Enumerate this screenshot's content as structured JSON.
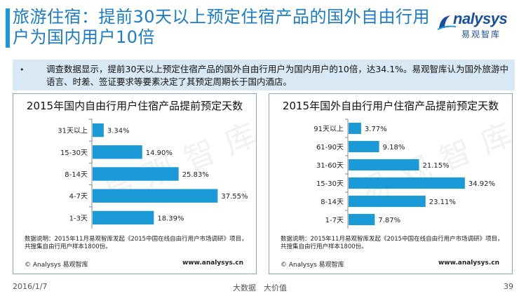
{
  "slide": {
    "title": "旅游住宿：提前30天以上预定住宿产品的国外自由行用户为国内用户10倍",
    "summary": "调查数据显示，提前30天以上预定住宿产品的国外自由行用户为国内用户的10倍，达34.1%。易观智库认为国外旅游中语言、时差、签证要求等要素决定了其预定周期长于国内酒店。",
    "bullet": "•",
    "logo_word": "nalysys",
    "logo_cn": "易观智库",
    "footer_date": "2016/1/7",
    "footer_center": "大数据　大价值",
    "page_number": "39"
  },
  "panels": [
    {
      "note": "数据说明：2015年11月易观智库发起《2015中国在线自由行用户市场调研》项目，共搜集自由行用户样本1800份。",
      "copyright": "© Analysys 易观智库",
      "site": "www.analysys.cn",
      "watermark": "易观智库"
    },
    {
      "note": "数据说明：2015年11月易观智库发起《2015中国在线自由行用户市场调研》项目，共搜集自由行用户样本1800份。",
      "copyright": "© Analysys 易观智库",
      "site": "www.analysys.cn",
      "watermark": "易观智库"
    }
  ],
  "chart_data": [
    {
      "type": "bar",
      "orientation": "horizontal",
      "title": "2015年国内自由行用户住宿产品提前预定天数",
      "categories": [
        "31天以上",
        "15-30天",
        "8-14天",
        "4-7天",
        "1-3天"
      ],
      "values": [
        3.34,
        14.9,
        25.83,
        37.55,
        18.39
      ],
      "labels": [
        "3.34%",
        "14.90%",
        "25.83%",
        "37.55%",
        "18.39%"
      ],
      "xlim": [
        0,
        40
      ],
      "bar_color": "#1a9ad6"
    },
    {
      "type": "bar",
      "orientation": "horizontal",
      "title": "2015年国外自由行用户住宿产品提前预定天数",
      "categories": [
        "91天以上",
        "61-90天",
        "31-60天",
        "15-30天",
        "8-14天",
        "1-7天"
      ],
      "values": [
        3.77,
        9.18,
        21.15,
        34.92,
        23.11,
        7.87
      ],
      "labels": [
        "3.77%",
        "9.18%",
        "21.15%",
        "34.92%",
        "23.11%",
        "7.87%"
      ],
      "xlim": [
        0,
        40
      ],
      "bar_color": "#1a9ad6"
    }
  ]
}
